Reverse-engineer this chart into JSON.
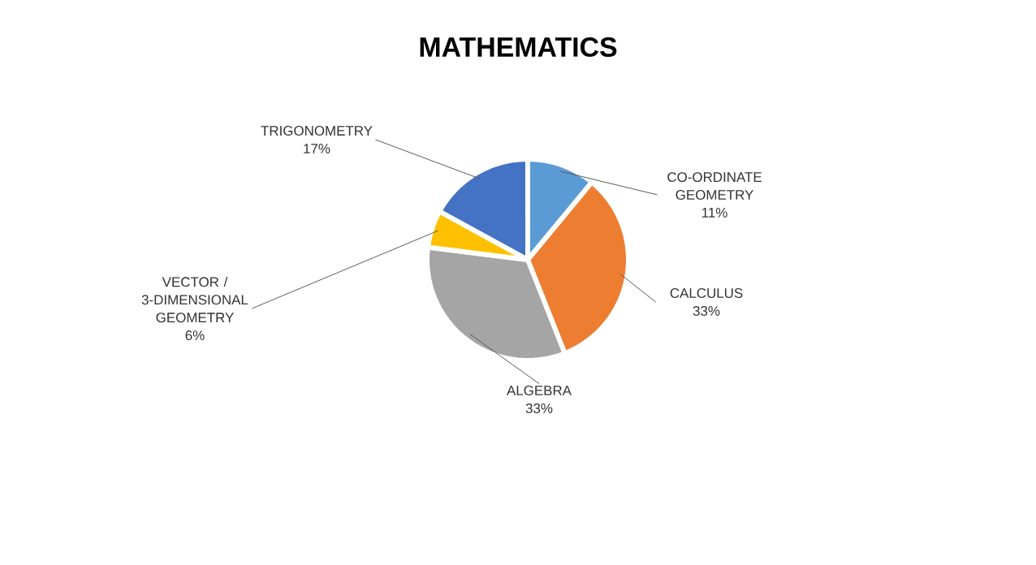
{
  "chart_data": {
    "type": "pie",
    "title": "MATHEMATICS",
    "categories": [
      "CO-ORDINATE GEOMETRY",
      "CALCULUS",
      "ALGEBRA",
      "VECTOR / 3-DIMENSIONAL GEOMETRY",
      "TRIGONOMETRY"
    ],
    "values": [
      11,
      33,
      33,
      6,
      17
    ],
    "value_labels": [
      "11%",
      "33%",
      "33%",
      "6%",
      "17%"
    ],
    "colors": [
      "#5b9bd5",
      "#ed7d31",
      "#a5a5a5",
      "#ffc000",
      "#4472c4"
    ],
    "legend": false
  }
}
